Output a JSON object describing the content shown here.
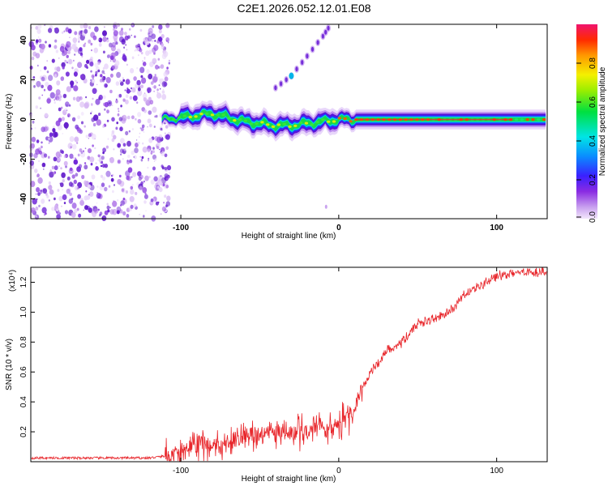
{
  "title": "C2E1.2026.052.12.01.E08",
  "chart_data": [
    {
      "type": "heatmap",
      "xlabel": "Height of straight line (km)",
      "ylabel": "Frequency (Hz)",
      "xlim": [
        -195,
        132
      ],
      "ylim": [
        -50,
        48
      ],
      "x_ticks": [
        -100,
        0,
        100
      ],
      "x_tick_labels": [
        "-100",
        "0",
        "100"
      ],
      "y_ticks": [
        40,
        20,
        0,
        -20,
        -40
      ],
      "y_tick_labels": [
        "40",
        "20",
        "0",
        "-20",
        "-40"
      ],
      "ridge": {
        "x_start": -112,
        "x_end": 132,
        "frequency_offsets": [
          [
            -112,
            0
          ],
          [
            -100,
            1
          ],
          [
            -90,
            2
          ],
          [
            -80,
            3
          ],
          [
            -70,
            1
          ],
          [
            -60,
            -1
          ],
          [
            -50,
            -2
          ],
          [
            -40,
            -3
          ],
          [
            -30,
            -3
          ],
          [
            -20,
            -2
          ],
          [
            -10,
            -1
          ],
          [
            0,
            0
          ],
          [
            20,
            0
          ],
          [
            60,
            0
          ],
          [
            132,
            0
          ]
        ]
      },
      "secondary_branch": [
        [
          -40,
          16
        ],
        [
          -30,
          22
        ],
        [
          -20,
          32
        ],
        [
          -10,
          42
        ],
        [
          -5,
          48
        ]
      ],
      "noise_region": [
        -195,
        -107
      ],
      "colorbar": {
        "label": "Normalized spectral amplitude",
        "range": [
          0,
          1
        ],
        "ticks": [
          0.0,
          0.2,
          0.4,
          0.6,
          0.8
        ],
        "tick_labels": [
          "0.0",
          "0.2",
          "0.4",
          "0.6",
          "0.8"
        ]
      }
    },
    {
      "type": "line",
      "xlabel": "Height of straight line (km)",
      "ylabel": "SNR (10 * v/v)",
      "scale_label": "(x10⁴)",
      "xlim": [
        -195,
        132
      ],
      "ylim": [
        0,
        1.3
      ],
      "x_ticks": [
        -100,
        0,
        100
      ],
      "x_tick_labels": [
        "-100",
        "0",
        "100"
      ],
      "y_ticks": [
        0.2,
        0.4,
        0.6,
        0.8,
        1.0,
        1.2
      ],
      "y_tick_labels": [
        "0.2",
        "0.4",
        "0.6",
        "0.8",
        "1.0",
        "1.2"
      ],
      "color": "#e8262b",
      "series": [
        {
          "name": "SNR",
          "points": [
            [
              -195,
              0.025
            ],
            [
              -120,
              0.025
            ],
            [
              -100,
              0.05
            ],
            [
              -90,
              0.12
            ],
            [
              -80,
              0.12
            ],
            [
              -70,
              0.14
            ],
            [
              -60,
              0.16
            ],
            [
              -50,
              0.18
            ],
            [
              -40,
              0.19
            ],
            [
              -30,
              0.2
            ],
            [
              -20,
              0.2
            ],
            [
              -10,
              0.22
            ],
            [
              0,
              0.25
            ],
            [
              5,
              0.28
            ],
            [
              10,
              0.36
            ],
            [
              15,
              0.48
            ],
            [
              20,
              0.6
            ],
            [
              25,
              0.66
            ],
            [
              30,
              0.74
            ],
            [
              40,
              0.8
            ],
            [
              50,
              0.92
            ],
            [
              60,
              0.95
            ],
            [
              70,
              1.0
            ],
            [
              80,
              1.12
            ],
            [
              90,
              1.18
            ],
            [
              100,
              1.24
            ],
            [
              110,
              1.26
            ],
            [
              120,
              1.27
            ],
            [
              132,
              1.27
            ]
          ]
        }
      ]
    }
  ]
}
